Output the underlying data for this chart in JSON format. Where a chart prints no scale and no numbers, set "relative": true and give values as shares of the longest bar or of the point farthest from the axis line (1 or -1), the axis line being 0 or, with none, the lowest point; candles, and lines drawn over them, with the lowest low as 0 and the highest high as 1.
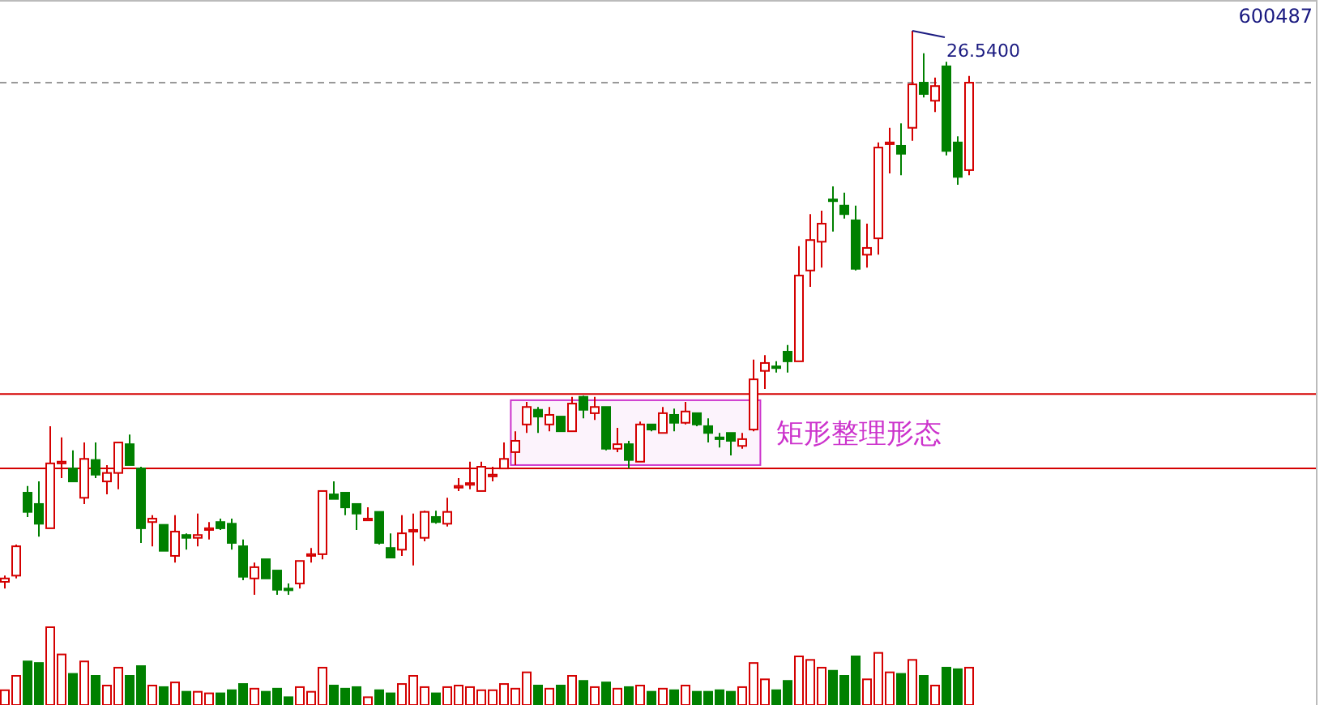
{
  "chart_data": [
    {
      "type": "candlestick",
      "relative": true,
      "categories": [
        null,
        null,
        null,
        null,
        null,
        null,
        null,
        null,
        null,
        null,
        null,
        null,
        null,
        null,
        null,
        null,
        null,
        null,
        null,
        null,
        null,
        null,
        null,
        null,
        null,
        null,
        null,
        null,
        null,
        null,
        null,
        null,
        null,
        null,
        null,
        null,
        null,
        null,
        null,
        null,
        null,
        null,
        null,
        null,
        null,
        null,
        null,
        null,
        null,
        null,
        null,
        null,
        null,
        null,
        null,
        null,
        null,
        null,
        null,
        null,
        null,
        null,
        null,
        null,
        null,
        null,
        null,
        null,
        null,
        null,
        null,
        null,
        null,
        null,
        null,
        null,
        null,
        null,
        null,
        null,
        null,
        null,
        null,
        null,
        null,
        null
      ],
      "ohlc": [
        [
          0.023,
          0.034,
          0.011,
          0.029
        ],
        [
          0.034,
          0.089,
          0.029,
          0.086
        ],
        [
          0.181,
          0.193,
          0.138,
          0.147
        ],
        [
          0.161,
          0.201,
          0.103,
          0.126
        ],
        [
          0.118,
          0.299,
          0.118,
          0.233
        ],
        [
          0.233,
          0.279,
          0.207,
          0.236
        ],
        [
          0.224,
          0.256,
          0.201,
          0.201
        ],
        [
          0.172,
          0.27,
          0.161,
          0.241
        ],
        [
          0.239,
          0.27,
          0.207,
          0.213
        ],
        [
          0.201,
          0.23,
          0.178,
          0.216
        ],
        [
          0.216,
          0.27,
          0.187,
          0.27
        ],
        [
          0.267,
          0.284,
          0.23,
          0.23
        ],
        [
          0.224,
          0.227,
          0.092,
          0.118
        ],
        [
          0.129,
          0.141,
          0.086,
          0.135
        ],
        [
          0.124,
          0.124,
          0.078,
          0.078
        ],
        [
          0.069,
          0.141,
          0.057,
          0.112
        ],
        [
          0.106,
          0.109,
          0.08,
          0.101
        ],
        [
          0.101,
          0.144,
          0.086,
          0.106
        ],
        [
          0.115,
          0.129,
          0.098,
          0.118
        ],
        [
          0.129,
          0.135,
          0.115,
          0.118
        ],
        [
          0.126,
          0.135,
          0.08,
          0.092
        ],
        [
          0.086,
          0.098,
          0.026,
          0.032
        ],
        [
          0.029,
          0.057,
          0,
          0.049
        ],
        [
          0.063,
          0.063,
          0.029,
          0.029
        ],
        [
          0.043,
          0.043,
          0,
          0.009
        ],
        [
          0.011,
          0.02,
          0,
          0.009
        ],
        [
          0.02,
          0.06,
          0.011,
          0.06
        ],
        [
          0.069,
          0.083,
          0.057,
          0.072
        ],
        [
          0.072,
          0.184,
          0.063,
          0.184
        ],
        [
          0.178,
          0.201,
          0.17,
          0.17
        ],
        [
          0.181,
          0.181,
          0.141,
          0.155
        ],
        [
          0.161,
          0.161,
          0.115,
          0.144
        ],
        [
          0.132,
          0.155,
          0.132,
          0.135
        ],
        [
          0.147,
          0.147,
          0.089,
          0.092
        ],
        [
          0.083,
          0.109,
          0.066,
          0.066
        ],
        [
          0.08,
          0.141,
          0.069,
          0.109
        ],
        [
          0.112,
          0.144,
          0.052,
          0.115
        ],
        [
          0.101,
          0.149,
          0.095,
          0.147
        ],
        [
          0.138,
          0.149,
          0.126,
          0.129
        ],
        [
          0.126,
          0.172,
          0.121,
          0.147
        ],
        [
          0.19,
          0.207,
          0.184,
          0.193
        ],
        [
          0.195,
          0.236,
          0.187,
          0.198
        ],
        [
          0.184,
          0.236,
          0.184,
          0.227
        ],
        [
          0.21,
          0.227,
          0.201,
          0.213
        ],
        [
          0.224,
          0.27,
          0.224,
          0.241
        ],
        [
          0.253,
          0.29,
          0.23,
          0.273
        ],
        [
          0.302,
          0.342,
          0.287,
          0.333
        ],
        [
          0.328,
          0.333,
          0.287,
          0.316
        ],
        [
          0.302,
          0.333,
          0.29,
          0.319
        ],
        [
          0.316,
          0.316,
          0.29,
          0.29
        ],
        [
          0.29,
          0.351,
          0.29,
          0.339
        ],
        [
          0.351,
          0.353,
          0.313,
          0.328
        ],
        [
          0.322,
          0.351,
          0.31,
          0.333
        ],
        [
          0.333,
          0.333,
          0.256,
          0.259
        ],
        [
          0.259,
          0.296,
          0.253,
          0.267
        ],
        [
          0.267,
          0.273,
          0.224,
          0.239
        ],
        [
          0.236,
          0.307,
          0.236,
          0.302
        ],
        [
          0.302,
          0.302,
          0.29,
          0.293
        ],
        [
          0.287,
          0.333,
          0.287,
          0.322
        ],
        [
          0.319,
          0.33,
          0.29,
          0.305
        ],
        [
          0.305,
          0.342,
          0.302,
          0.325
        ],
        [
          0.322,
          0.322,
          0.299,
          0.302
        ],
        [
          0.299,
          0.313,
          0.27,
          0.287
        ],
        [
          0.279,
          0.287,
          0.261,
          0.276
        ],
        [
          0.287,
          0.287,
          0.247,
          0.273
        ],
        [
          0.264,
          0.287,
          0.259,
          0.276
        ],
        [
          0.293,
          0.417,
          0.29,
          0.382
        ],
        [
          0.397,
          0.425,
          0.365,
          0.411
        ],
        [
          0.405,
          0.414,
          0.394,
          0.402
        ],
        [
          0.431,
          0.443,
          0.394,
          0.414
        ],
        [
          0.414,
          0.618,
          0.414,
          0.566
        ],
        [
          0.575,
          0.675,
          0.546,
          0.629
        ],
        [
          0.626,
          0.681,
          0.58,
          0.658
        ],
        [
          0.701,
          0.724,
          0.644,
          0.698
        ],
        [
          0.69,
          0.713,
          0.667,
          0.675
        ],
        [
          0.664,
          0.69,
          0.575,
          0.578
        ],
        [
          0.603,
          0.658,
          0.58,
          0.615
        ],
        [
          0.632,
          0.802,
          0.603,
          0.793
        ],
        [
          0.799,
          0.828,
          0.747,
          0.802
        ],
        [
          0.796,
          0.836,
          0.744,
          0.782
        ],
        [
          0.828,
          1,
          0.805,
          0.905
        ],
        [
          0.908,
          0.96,
          0.882,
          0.888
        ],
        [
          0.876,
          0.917,
          0.856,
          0.902
        ],
        [
          0.937,
          0.945,
          0.779,
          0.787
        ],
        [
          0.802,
          0.813,
          0.727,
          0.741
        ],
        [
          0.753,
          0.92,
          0.744,
          0.908
        ]
      ],
      "colors": [
        "#d40000",
        "#d40000",
        "#008000",
        "#008000",
        "#d40000",
        "#d40000",
        "#008000",
        "#d40000",
        "#008000",
        "#d40000",
        "#d40000",
        "#008000",
        "#008000",
        "#d40000",
        "#008000",
        "#d40000",
        "#008000",
        "#d40000",
        "#d40000",
        "#008000",
        "#008000",
        "#008000",
        "#d40000",
        "#008000",
        "#008000",
        "#008000",
        "#d40000",
        "#d40000",
        "#d40000",
        "#008000",
        "#008000",
        "#008000",
        "#d40000",
        "#008000",
        "#008000",
        "#d40000",
        "#d40000",
        "#d40000",
        "#008000",
        "#d40000",
        "#d40000",
        "#d40000",
        "#d40000",
        "#d40000",
        "#d40000",
        "#d40000",
        "#d40000",
        "#008000",
        "#d40000",
        "#008000",
        "#d40000",
        "#008000",
        "#d40000",
        "#008000",
        "#d40000",
        "#008000",
        "#d40000",
        "#008000",
        "#d40000",
        "#008000",
        "#d40000",
        "#008000",
        "#008000",
        "#008000",
        "#008000",
        "#d40000",
        "#d40000",
        "#d40000",
        "#008000",
        "#008000",
        "#d40000",
        "#d40000",
        "#d40000",
        "#008000",
        "#008000",
        "#008000",
        "#d40000",
        "#d40000",
        "#d40000",
        "#008000",
        "#d40000",
        "#008000",
        "#d40000",
        "#008000",
        "#008000",
        "#d40000"
      ],
      "ref_lines": [
        {
          "axis": "y",
          "value": 0.356,
          "color": "#d40000"
        },
        {
          "axis": "y",
          "value": 0.224,
          "color": "#d40000"
        },
        {
          "axis": "y",
          "value": 0.908,
          "color": "#999999",
          "line_style": "dashed"
        }
      ],
      "bands": [
        {
          "axis": "y",
          "from": 0.23,
          "to": 0.345,
          "label": "矩形整理形态",
          "color": "#cc33cc"
        }
      ],
      "annotations": [
        "26.5400",
        "600487"
      ]
    },
    {
      "type": "bar",
      "relative": true,
      "categories": [
        null,
        null,
        null,
        null,
        null,
        null,
        null,
        null,
        null,
        null,
        null,
        null,
        null,
        null,
        null,
        null,
        null,
        null,
        null,
        null,
        null,
        null,
        null,
        null,
        null,
        null,
        null,
        null,
        null,
        null,
        null,
        null,
        null,
        null,
        null,
        null,
        null,
        null,
        null,
        null,
        null,
        null,
        null,
        null,
        null,
        null,
        null,
        null,
        null,
        null,
        null,
        null,
        null,
        null,
        null,
        null,
        null,
        null,
        null,
        null,
        null,
        null,
        null,
        null,
        null,
        null,
        null,
        null,
        null,
        null,
        null,
        null,
        null,
        null,
        null,
        null,
        null,
        null,
        null,
        null,
        null,
        null,
        null,
        null,
        null,
        null
      ],
      "values": [
        0.19,
        0.375,
        0.56,
        0.54,
        1,
        0.65,
        0.4,
        0.56,
        0.375,
        0.25,
        0.48,
        0.375,
        0.5,
        0.25,
        0.23,
        0.29,
        0.17,
        0.17,
        0.15,
        0.15,
        0.19,
        0.27,
        0.21,
        0.17,
        0.21,
        0.1,
        0.23,
        0.17,
        0.48,
        0.25,
        0.21,
        0.23,
        0.1,
        0.19,
        0.15,
        0.27,
        0.375,
        0.23,
        0.15,
        0.23,
        0.25,
        0.23,
        0.19,
        0.19,
        0.27,
        0.21,
        0.42,
        0.25,
        0.21,
        0.25,
        0.375,
        0.31,
        0.23,
        0.29,
        0.21,
        0.23,
        0.25,
        0.17,
        0.21,
        0.19,
        0.25,
        0.17,
        0.17,
        0.19,
        0.17,
        0.23,
        0.54,
        0.33,
        0.19,
        0.31,
        0.625,
        0.58,
        0.48,
        0.44,
        0.375,
        0.625,
        0.33,
        0.67,
        0.42,
        0.4,
        0.58,
        0.375,
        0.25,
        0.48,
        0.46,
        0.48
      ],
      "colors": [
        "#d40000",
        "#d40000",
        "#008000",
        "#008000",
        "#d40000",
        "#d40000",
        "#008000",
        "#d40000",
        "#008000",
        "#d40000",
        "#d40000",
        "#008000",
        "#008000",
        "#d40000",
        "#008000",
        "#d40000",
        "#008000",
        "#d40000",
        "#d40000",
        "#008000",
        "#008000",
        "#008000",
        "#d40000",
        "#008000",
        "#008000",
        "#008000",
        "#d40000",
        "#d40000",
        "#d40000",
        "#008000",
        "#008000",
        "#008000",
        "#d40000",
        "#008000",
        "#008000",
        "#d40000",
        "#d40000",
        "#d40000",
        "#008000",
        "#d40000",
        "#d40000",
        "#d40000",
        "#d40000",
        "#d40000",
        "#d40000",
        "#d40000",
        "#d40000",
        "#008000",
        "#d40000",
        "#008000",
        "#d40000",
        "#008000",
        "#d40000",
        "#008000",
        "#d40000",
        "#008000",
        "#d40000",
        "#008000",
        "#d40000",
        "#008000",
        "#d40000",
        "#008000",
        "#008000",
        "#008000",
        "#008000",
        "#d40000",
        "#d40000",
        "#d40000",
        "#008000",
        "#008000",
        "#d40000",
        "#d40000",
        "#d40000",
        "#008000",
        "#008000",
        "#008000",
        "#d40000",
        "#d40000",
        "#d40000",
        "#008000",
        "#d40000",
        "#008000",
        "#d40000",
        "#008000",
        "#008000",
        "#d40000"
      ]
    }
  ]
}
